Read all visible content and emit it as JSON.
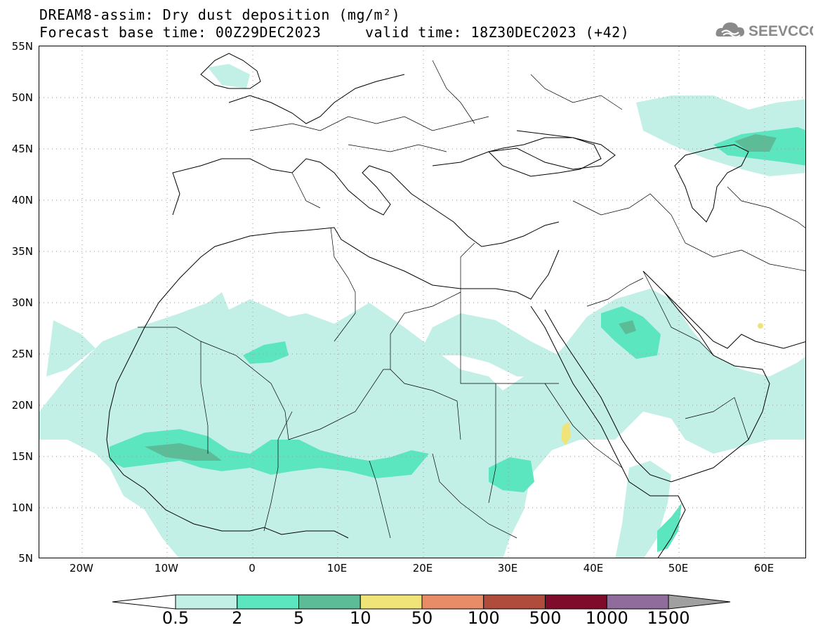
{
  "title": {
    "line1": "DREAM8-assim: Dry dust deposition (mg/m²)",
    "line2_left": "Forecast base time: 00Z29DEC2023",
    "line2_right": "valid time: 18Z30DEC2023 (+42)"
  },
  "logo": {
    "text": "SEEVCCC",
    "icon": "cloud-logo-icon"
  },
  "map": {
    "projection": "lat-lon",
    "lon_range": [
      -25,
      65
    ],
    "lat_range": [
      5,
      55
    ],
    "lat_labels": [
      "55N",
      "50N",
      "45N",
      "40N",
      "35N",
      "30N",
      "25N",
      "20N",
      "15N",
      "10N",
      "5N"
    ],
    "lon_labels": [
      "20W",
      "10W",
      "0",
      "10E",
      "20E",
      "30E",
      "40E",
      "50E",
      "60E"
    ],
    "grid": "dotted"
  },
  "colorbar": {
    "labels": [
      "0.5",
      "2",
      "5",
      "10",
      "50",
      "100",
      "500",
      "1000",
      "1500"
    ],
    "colors": [
      "#c2f0e6",
      "#5ce6c0",
      "#5cbc98",
      "#f0e478",
      "#e88c68",
      "#b04c3c",
      "#800c2c",
      "#906c9c"
    ],
    "under_color": "#ffffff",
    "over_color": "#a0a0a0"
  }
}
